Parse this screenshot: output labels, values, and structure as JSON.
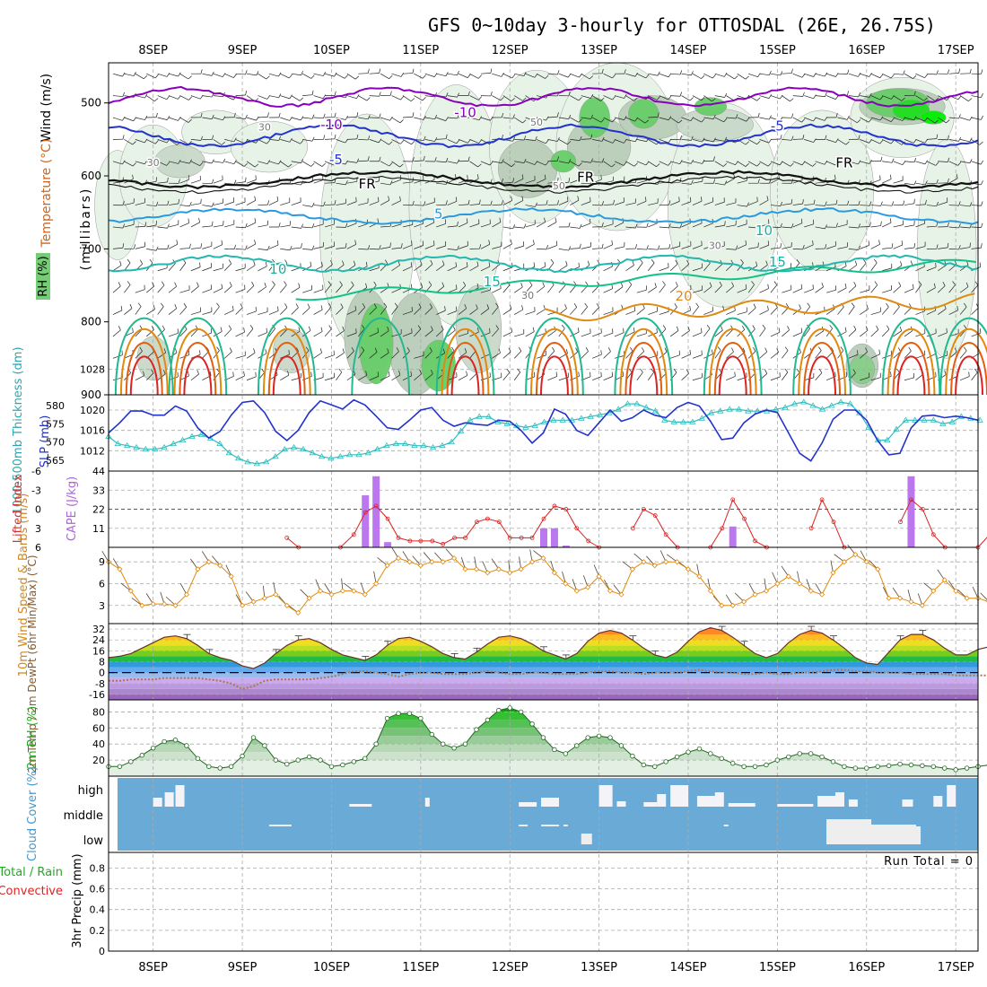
{
  "title": "GFS 0~10day 3-hourly for OTTOSDAL (26E, 26.75S)",
  "dates": [
    "8SEP",
    "9SEP",
    "10SEP",
    "11SEP",
    "12SEP",
    "13SEP",
    "14SEP",
    "15SEP",
    "16SEP",
    "17SEP"
  ],
  "colors": {
    "grid": "#aaaaaa",
    "blue": "#2233cc",
    "cyan": "#33bbbb",
    "purple": "#8800bb",
    "orange": "#e08a10",
    "red": "#dd2222",
    "green": "#22aa22",
    "cloud": "#6aaad6"
  },
  "chart_data": [
    {
      "type": "contour",
      "name": "upper-air",
      "ylabel": "(millibars)",
      "side_labels": [
        "Wind (m/s)",
        "Temperature (°C)",
        "RH (%)"
      ],
      "yticks": [
        500,
        600,
        700,
        800,
        900
      ],
      "ylim": [
        445,
        900
      ],
      "contour_labels": [
        {
          "text": "-10",
          "day": 11.5,
          "p": 513
        },
        {
          "text": "-10",
          "day": 10.0,
          "p": 530
        },
        {
          "text": "-5",
          "day": 10.05,
          "p": 578
        },
        {
          "text": "-5",
          "day": 15.0,
          "p": 532
        },
        {
          "text": "FR",
          "day": 10.4,
          "p": 611
        },
        {
          "text": "FR",
          "day": 12.85,
          "p": 602
        },
        {
          "text": "FR",
          "day": 15.75,
          "p": 582
        },
        {
          "text": "5",
          "day": 11.2,
          "p": 652
        },
        {
          "text": "10",
          "day": 14.85,
          "p": 675
        },
        {
          "text": "10",
          "day": 9.4,
          "p": 728
        },
        {
          "text": "15",
          "day": 11.8,
          "p": 745
        },
        {
          "text": "15",
          "day": 15.0,
          "p": 718
        },
        {
          "text": "20",
          "day": 13.95,
          "p": 765
        },
        {
          "text": "30",
          "day": 9.25,
          "p": 532
        },
        {
          "text": "30",
          "day": 8.0,
          "p": 580
        },
        {
          "text": "50",
          "day": 12.3,
          "p": 525
        },
        {
          "text": "50",
          "day": 12.55,
          "p": 612
        },
        {
          "text": "30",
          "day": 12.2,
          "p": 762
        },
        {
          "text": "30",
          "day": 14.3,
          "p": 694
        }
      ]
    },
    {
      "type": "line",
      "name": "slp-thickness",
      "ylabels": [
        "1000-500mb Thickness (dm)",
        "SLP (mb)"
      ],
      "left_ticks": [
        565,
        570,
        575,
        580
      ],
      "right_ticks": [
        1012,
        1016,
        1020,
        1028
      ],
      "left_ylim": [
        562,
        583
      ],
      "right_ylim": [
        1008,
        1023
      ],
      "series": [
        {
          "key": "slp",
          "unit": "mb",
          "values": [
            1015.5,
            1017.5,
            1019.8,
            1019.8,
            1019,
            1019,
            1020.8,
            1019.8,
            1016.5,
            1014.5,
            1015.8,
            1019,
            1021.5,
            1021.8,
            1019.5,
            1015.8,
            1014,
            1016,
            1019.5,
            1021.8,
            1021,
            1020.2,
            1022,
            1021,
            1018.8,
            1016.5,
            1016.2,
            1018,
            1020,
            1020.5,
            1018,
            1016.8,
            1017.5,
            1017.2,
            1017,
            1018,
            1017.8,
            1016,
            1013.5,
            1015.5,
            1020.2,
            1019.2,
            1016,
            1015,
            1017.5,
            1020,
            1017.8,
            1018.5,
            1020,
            1019,
            1018.5,
            1020.5,
            1021.5,
            1020.8,
            1017.8,
            1014.2,
            1014.5,
            1017.5,
            1019.2,
            1020,
            1019.5,
            1015.5,
            1011.5,
            1010,
            1013.5,
            1018.2,
            1020,
            1020,
            1018,
            1014,
            1011.2,
            1011.5,
            1016.5,
            1018.8,
            1019,
            1018.5,
            1018.8,
            1018.5,
            1018
          ]
        },
        {
          "key": "thickness",
          "unit": "dm",
          "values": [
            571.5,
            569.5,
            569,
            568.5,
            568,
            568,
            568.5,
            569.5,
            570.5,
            571.5,
            572,
            571,
            569.5,
            567,
            565.5,
            564.5,
            564,
            564.5,
            566,
            568,
            568.5,
            568,
            567,
            566,
            565.5,
            566,
            566.5,
            566.5,
            567,
            568,
            569,
            569.5,
            569.5,
            569,
            569,
            568.5,
            569,
            570,
            573,
            576,
            577,
            577,
            575.5,
            575,
            574.5,
            574,
            574.5,
            575.5,
            576,
            576,
            576,
            576.5,
            577,
            577.5,
            578,
            579,
            580.5,
            580.5,
            579.5,
            578.5,
            576,
            575.5,
            575.5,
            575.5,
            576.5,
            578,
            578.5,
            579,
            579,
            578.5,
            578.5,
            578.5,
            579,
            579.5,
            580.5,
            581,
            580,
            579,
            580,
            581,
            580.5,
            578,
            574,
            570.5,
            570.5,
            573.5,
            576,
            576,
            576,
            576,
            575,
            575.5,
            577,
            576.5,
            576
          ]
        }
      ]
    },
    {
      "type": "bar+line",
      "name": "cape-li",
      "ylabels": [
        "Lifted Index",
        "CAPE (J/kg)"
      ],
      "li_ticks": [
        "-6",
        "-3",
        "0",
        "3",
        "6"
      ],
      "li_ylim": [
        -6,
        6
      ],
      "cape_ticks": [
        11,
        22,
        33,
        44
      ],
      "cape_ylim": [
        0,
        44
      ],
      "cape_bars": [
        {
          "day": 10.38,
          "v": 30
        },
        {
          "day": 10.5,
          "v": 41
        },
        {
          "day": 10.63,
          "v": 3
        },
        {
          "day": 12.38,
          "v": 11
        },
        {
          "day": 12.5,
          "v": 11
        },
        {
          "day": 12.63,
          "v": 1
        },
        {
          "day": 14.5,
          "v": 12
        },
        {
          "day": 16.5,
          "v": 41
        }
      ],
      "lifted_index": [
        {
          "day": 9.5,
          "v": 4.5
        },
        {
          "day": 9.63,
          "v": 6
        },
        {
          "day": 10.1,
          "v": 6
        },
        {
          "day": 10.25,
          "v": 4
        },
        {
          "day": 10.38,
          "v": 0.5
        },
        {
          "day": 10.5,
          "v": -0.5
        },
        {
          "day": 10.63,
          "v": 1.5
        },
        {
          "day": 10.75,
          "v": 4.5
        },
        {
          "day": 10.88,
          "v": 5
        },
        {
          "day": 11.0,
          "v": 5
        },
        {
          "day": 11.13,
          "v": 5
        },
        {
          "day": 11.25,
          "v": 5.5
        },
        {
          "day": 11.38,
          "v": 4.5
        },
        {
          "day": 11.5,
          "v": 4.5
        },
        {
          "day": 11.63,
          "v": 2
        },
        {
          "day": 11.75,
          "v": 1.5
        },
        {
          "day": 11.88,
          "v": 2
        },
        {
          "day": 12.0,
          "v": 4.5
        },
        {
          "day": 12.13,
          "v": 4.5
        },
        {
          "day": 12.25,
          "v": 4.5
        },
        {
          "day": 12.38,
          "v": 1.5
        },
        {
          "day": 12.5,
          "v": -0.5
        },
        {
          "day": 12.63,
          "v": 0
        },
        {
          "day": 12.75,
          "v": 3
        },
        {
          "day": 12.88,
          "v": 5
        },
        {
          "day": 13.0,
          "v": 6
        },
        {
          "day": 13.38,
          "v": 3
        },
        {
          "day": 13.5,
          "v": 0
        },
        {
          "day": 13.63,
          "v": 1
        },
        {
          "day": 13.75,
          "v": 4
        },
        {
          "day": 13.88,
          "v": 6
        },
        {
          "day": 14.25,
          "v": 6
        },
        {
          "day": 14.38,
          "v": 3
        },
        {
          "day": 14.5,
          "v": -1.5
        },
        {
          "day": 14.63,
          "v": 1.5
        },
        {
          "day": 14.75,
          "v": 5
        },
        {
          "day": 14.88,
          "v": 6
        },
        {
          "day": 15.38,
          "v": 3
        },
        {
          "day": 15.5,
          "v": -1.5
        },
        {
          "day": 15.63,
          "v": 2
        },
        {
          "day": 15.75,
          "v": 6
        },
        {
          "day": 16.38,
          "v": 2
        },
        {
          "day": 16.5,
          "v": -1.5
        },
        {
          "day": 16.63,
          "v": 0
        },
        {
          "day": 16.75,
          "v": 4
        },
        {
          "day": 16.88,
          "v": 6
        },
        {
          "day": 17.25,
          "v": 6
        },
        {
          "day": 17.38,
          "v": 4
        }
      ]
    },
    {
      "type": "line",
      "name": "wind10m",
      "ylabel": "10m Wind Speed & Barbs (m/s)",
      "yticks": [
        3,
        6,
        9
      ],
      "ylim": [
        0.5,
        11
      ],
      "x0": 7.5,
      "dx": 0.125,
      "values": [
        9,
        8,
        5,
        3,
        3.2,
        3.2,
        3,
        4.5,
        8,
        9,
        8.5,
        7,
        3,
        3.5,
        4,
        4.5,
        3,
        2,
        4,
        5,
        4.5,
        5,
        5,
        4.5,
        6,
        8.5,
        9.5,
        9,
        8.5,
        9,
        9,
        9.5,
        8,
        8,
        7.5,
        8,
        7.5,
        8,
        9,
        9.5,
        7.5,
        6,
        5,
        5.5,
        7,
        5,
        4.5,
        8,
        9,
        8.5,
        9,
        9,
        8,
        7,
        5,
        3,
        3,
        3.5,
        4.5,
        5,
        6,
        7,
        6,
        5,
        4.5,
        7.5,
        9,
        10,
        9,
        8,
        4,
        4,
        3.5,
        3,
        5,
        6.5,
        5,
        4,
        4,
        3.5,
        3.2
      ]
    },
    {
      "type": "area",
      "name": "temp2m",
      "ylabel": "2m Temp / 2m DewPt (6hr Min/Max) (°C)",
      "yticks": [
        -16,
        -8,
        0,
        8,
        16,
        24,
        32
      ],
      "ylim": [
        -20,
        36
      ],
      "x0": 7.5,
      "dx": 0.125,
      "temp": [
        11,
        12,
        14,
        18,
        22,
        26,
        27,
        25,
        20,
        14,
        11,
        9,
        5,
        3,
        7,
        14,
        20,
        24,
        25,
        22,
        17,
        13,
        11,
        9,
        13,
        20,
        25,
        26,
        23,
        19,
        14,
        11,
        10,
        15,
        21,
        26,
        27,
        25,
        21,
        16,
        13,
        10,
        14,
        23,
        29,
        31,
        29,
        24,
        18,
        13,
        11,
        15,
        23,
        30,
        33,
        31,
        26,
        20,
        14,
        11,
        14,
        22,
        28,
        31,
        29,
        24,
        18,
        11,
        7,
        6,
        15,
        24,
        28,
        28,
        24,
        18,
        13,
        13,
        17,
        19,
        20
      ],
      "dewpt": [
        -6,
        -6,
        -5,
        -5,
        -5,
        -4,
        -4,
        -4,
        -4,
        -5,
        -6,
        -8,
        -12,
        -10,
        -6,
        -5,
        -5,
        -5,
        -5,
        -4,
        -3,
        -1,
        1,
        1,
        0,
        -1,
        -3,
        -1,
        0,
        0,
        -1,
        -1,
        -1,
        0,
        1,
        0,
        -1,
        -1,
        0,
        0,
        -1,
        -1,
        -1,
        0,
        1,
        1,
        0,
        0,
        -1,
        0,
        0,
        0,
        1,
        2,
        1,
        0,
        0,
        -1,
        -1,
        0,
        -1,
        -1,
        0,
        0,
        1,
        2,
        2,
        1,
        1,
        0,
        0,
        0,
        -1,
        -1,
        -1,
        -1,
        -2,
        -2,
        -2,
        -2,
        -2
      ]
    },
    {
      "type": "area",
      "name": "rh2m",
      "ylabel": "2m RH (%)",
      "yticks": [
        20,
        40,
        60,
        80
      ],
      "ylim": [
        0,
        95
      ],
      "x0": 7.5,
      "dx": 0.125,
      "values": [
        12,
        12,
        18,
        26,
        35,
        43,
        45,
        38,
        22,
        12,
        10,
        12,
        25,
        48,
        38,
        20,
        15,
        20,
        24,
        20,
        12,
        14,
        18,
        22,
        40,
        72,
        78,
        78,
        72,
        52,
        40,
        35,
        40,
        58,
        70,
        82,
        85,
        80,
        65,
        48,
        33,
        28,
        38,
        48,
        50,
        48,
        38,
        25,
        14,
        12,
        18,
        24,
        30,
        34,
        28,
        22,
        16,
        12,
        12,
        14,
        20,
        24,
        28,
        28,
        24,
        18,
        12,
        10,
        10,
        12,
        13,
        15,
        14,
        13,
        12,
        10,
        8,
        10,
        12,
        14,
        18
      ]
    },
    {
      "type": "bar",
      "name": "cloud",
      "ylabel": "Cloud Cover (%)",
      "levels": [
        "high",
        "middle",
        "low"
      ]
    },
    {
      "type": "bar",
      "name": "precip",
      "ylabel": "3hr Precip (mm)",
      "side_labels": [
        "Total / Rain",
        "Convective"
      ],
      "yticks": [
        "0",
        "0.2",
        "0.4",
        "0.6",
        "0.8"
      ],
      "ylim": [
        0,
        0.95
      ],
      "run_total": "Run Total = 0"
    }
  ]
}
